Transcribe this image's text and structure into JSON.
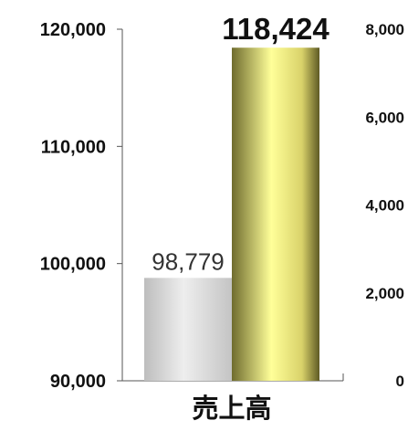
{
  "chart_data": {
    "type": "bar",
    "categories": [
      "売上高"
    ],
    "series": [
      {
        "values": [
          98779
        ],
        "color": "#d9d9d9"
      },
      {
        "values": [
          118424
        ],
        "color": "#f4f08a"
      }
    ],
    "data_labels": [
      "98,779",
      "118,424"
    ],
    "left_axis": {
      "ylim": [
        90000,
        120000
      ],
      "ticks": [
        {
          "value": 90000,
          "label": "90,000"
        },
        {
          "value": 100000,
          "label": "100,000"
        },
        {
          "value": 110000,
          "label": "110,000"
        },
        {
          "value": 120000,
          "label": "120,000"
        }
      ]
    },
    "right_axis": {
      "ylim": [
        0,
        8000
      ],
      "ticks": [
        {
          "value": 0,
          "label": "0"
        },
        {
          "value": 2000,
          "label": "2,000"
        },
        {
          "value": 4000,
          "label": "4,000"
        },
        {
          "value": 6000,
          "label": "6,000"
        },
        {
          "value": 8000,
          "label": "8,000"
        }
      ]
    },
    "grid": false,
    "legend": "none"
  }
}
